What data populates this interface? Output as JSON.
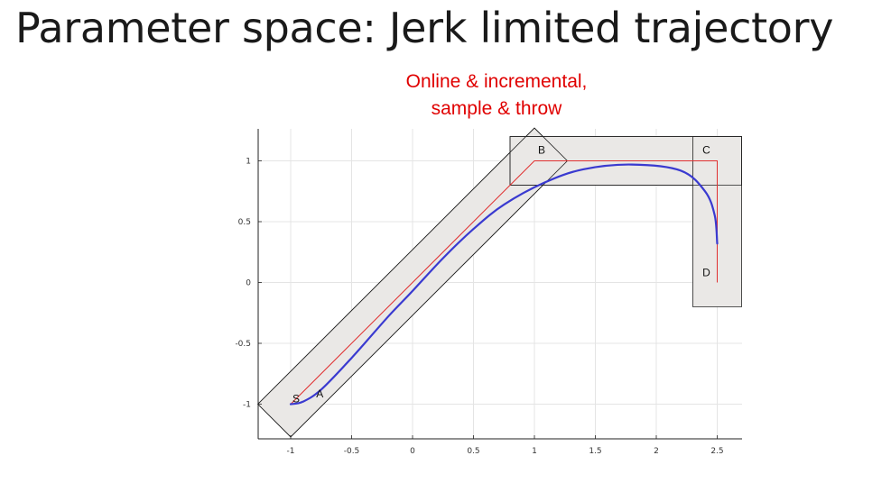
{
  "slide": {
    "title": "Parameter space: Jerk limited trajectory",
    "subtitle_line1": "Online & incremental,",
    "subtitle_line2": "sample & throw"
  },
  "chart_data": {
    "type": "line",
    "xticks": [
      -1,
      -0.5,
      0,
      0.5,
      1,
      1.5,
      2,
      2.5
    ],
    "yticks": [
      -1,
      -0.5,
      0,
      0.5,
      1
    ],
    "xlim": [
      -1.27,
      2.7
    ],
    "ylim": [
      -1.27,
      1.2
    ],
    "grid": true,
    "points": [
      {
        "name": "S",
        "x": -1.0,
        "y": -1.0
      },
      {
        "name": "A",
        "x": -0.85,
        "y": -0.98
      },
      {
        "name": "B",
        "x": 1.0,
        "y": 1.0
      },
      {
        "name": "C",
        "x": 2.5,
        "y": 1.0
      },
      {
        "name": "D",
        "x": 2.5,
        "y": 0.0
      }
    ],
    "reference_path": {
      "color": "#e03030",
      "x": [
        -1.0,
        1.0,
        2.5,
        2.5
      ],
      "y": [
        -1.0,
        1.0,
        1.0,
        0.0
      ]
    },
    "trajectory": {
      "color": "#3a3ad0",
      "x": [
        -1.0,
        -0.9,
        -0.75,
        -0.5,
        -0.2,
        0.0,
        0.25,
        0.5,
        0.75,
        1.08,
        1.4,
        1.8,
        2.2,
        2.4,
        2.48,
        2.5
      ],
      "y": [
        -1.0,
        -0.98,
        -0.88,
        -0.62,
        -0.28,
        -0.07,
        0.2,
        0.44,
        0.64,
        0.82,
        0.93,
        0.97,
        0.92,
        0.75,
        0.55,
        0.32
      ]
    },
    "regions": {
      "fill": "#eae8e6",
      "diagonal_corridor": [
        [
          -1.27,
          -1.0
        ],
        [
          -1.0,
          -1.27
        ],
        [
          1.27,
          1.0
        ],
        [
          1.0,
          1.27
        ]
      ],
      "top_corridor": [
        [
          0.8,
          0.8
        ],
        [
          2.7,
          0.8
        ],
        [
          2.7,
          1.2
        ],
        [
          0.8,
          1.2
        ]
      ],
      "right_corridor": [
        [
          2.3,
          -0.2
        ],
        [
          2.7,
          -0.2
        ],
        [
          2.7,
          1.2
        ],
        [
          2.3,
          1.2
        ]
      ]
    }
  }
}
